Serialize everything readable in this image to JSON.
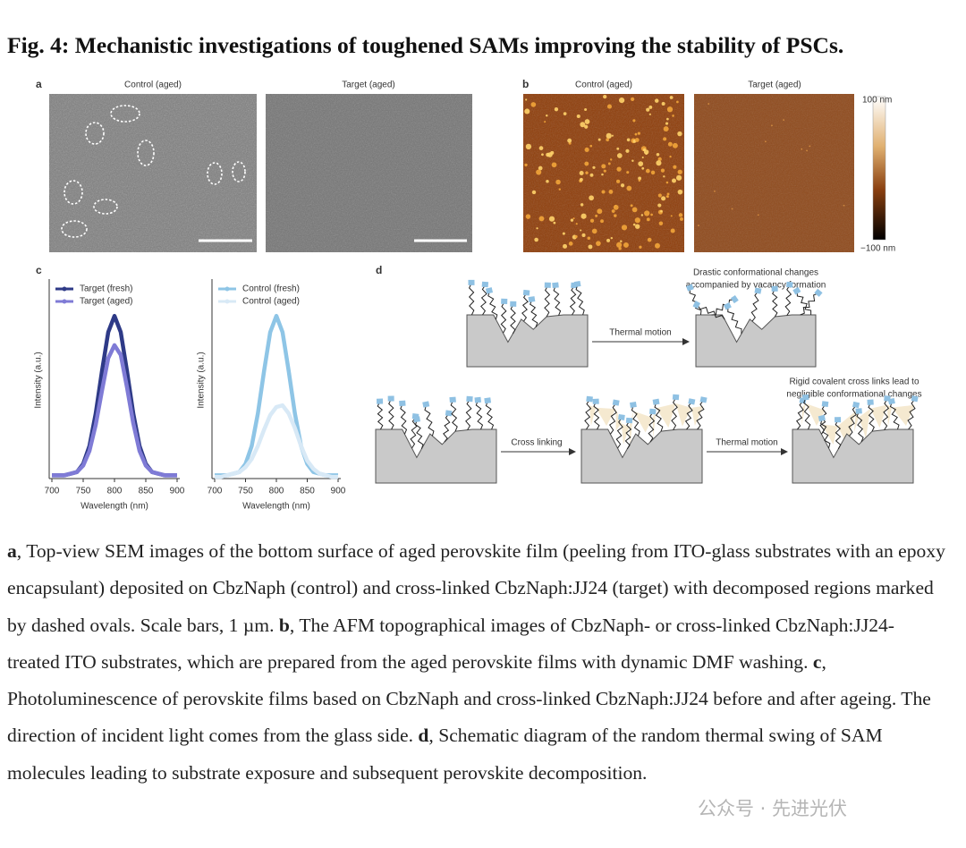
{
  "title": "Fig. 4: Mechanistic investigations of toughened SAMs improving the stability of PSCs.",
  "panel_a": {
    "label": "a",
    "images": [
      "Control (aged)",
      "Target (aged)"
    ]
  },
  "panel_b": {
    "label": "b",
    "images": [
      "Control (aged)",
      "Target (aged)"
    ],
    "colorbar": [
      "100 nm",
      "−100 nm"
    ]
  },
  "panel_c": {
    "label": "c",
    "charts": [
      {
        "type": "line",
        "xlabel": "Wavelength (nm)",
        "ylabel": "Intensity (a.u.)",
        "x": [
          700,
          710,
          720,
          730,
          740,
          750,
          760,
          770,
          780,
          790,
          800,
          810,
          820,
          830,
          840,
          850,
          860,
          870,
          880,
          890,
          900
        ],
        "xlim": [
          700,
          900
        ],
        "xticks": [
          700,
          750,
          800,
          850,
          900
        ],
        "ylim": [
          0,
          1.1
        ],
        "series": [
          {
            "name": "Target (fresh)",
            "color": "#2e3a87",
            "values": [
              0.02,
              0.02,
              0.02,
              0.03,
              0.04,
              0.09,
              0.2,
              0.4,
              0.66,
              0.9,
              1.0,
              0.9,
              0.66,
              0.4,
              0.2,
              0.09,
              0.04,
              0.03,
              0.02,
              0.02,
              0.02
            ]
          },
          {
            "name": "Target (aged)",
            "color": "#7f7bd6",
            "values": [
              0.02,
              0.02,
              0.02,
              0.03,
              0.04,
              0.08,
              0.17,
              0.33,
              0.54,
              0.74,
              0.82,
              0.76,
              0.56,
              0.34,
              0.17,
              0.08,
              0.04,
              0.03,
              0.02,
              0.02,
              0.02
            ]
          }
        ]
      },
      {
        "type": "line",
        "xlabel": "Wavelength (nm)",
        "ylabel": "Intensity (a.u.)",
        "x": [
          700,
          710,
          720,
          730,
          740,
          750,
          760,
          770,
          780,
          790,
          800,
          810,
          820,
          830,
          840,
          850,
          860,
          870,
          880,
          890,
          900
        ],
        "xlim": [
          700,
          900
        ],
        "xticks": [
          700,
          750,
          800,
          850,
          900
        ],
        "ylim": [
          0,
          1.1
        ],
        "series": [
          {
            "name": "Control (fresh)",
            "color": "#8ec5e6",
            "values": [
              0.02,
              0.02,
              0.02,
              0.03,
              0.04,
              0.09,
              0.2,
              0.4,
              0.66,
              0.9,
              1.0,
              0.9,
              0.66,
              0.4,
              0.2,
              0.09,
              0.04,
              0.03,
              0.02,
              0.02,
              0.02
            ]
          },
          {
            "name": "Control (aged)",
            "color": "#d8e9f6",
            "values": [
              0.01,
              0.01,
              0.02,
              0.03,
              0.04,
              0.07,
              0.12,
              0.2,
              0.3,
              0.39,
              0.44,
              0.45,
              0.4,
              0.31,
              0.2,
              0.11,
              0.06,
              0.03,
              0.02,
              0.01,
              0.01
            ]
          }
        ]
      }
    ]
  },
  "panel_d": {
    "label": "d",
    "notes": [
      "Drastic conformational changes",
      "accompanied by vacancy formation",
      "Rigid covalent cross links lead to",
      "negligible conformational changes"
    ],
    "arrows": [
      "Thermal motion",
      "Cross linking",
      "Thermal motion"
    ]
  },
  "caption": [
    {
      "label": "a",
      "text": ", Top-view SEM images of the bottom surface of aged perovskite film (peeling from ITO-glass substrates with an epoxy encapsulant) deposited on CbzNaph (control) and cross-linked CbzNaph:JJ24 (target) with decomposed regions marked by dashed ovals. Scale bars, 1 µm. "
    },
    {
      "label": "b",
      "text": ", The AFM topographical images of CbzNaph- or cross-linked CbzNaph:JJ24-treated ITO substrates, which are prepared from the aged perovskite films with dynamic DMF washing. "
    },
    {
      "label": "c",
      "text": ", Photoluminescence of perovskite films based on CbzNaph and cross-linked CbzNaph:JJ24 before and after ageing. The direction of incident light comes from the glass side. "
    },
    {
      "label": "d",
      "text": ", Schematic diagram of the random thermal swing of SAM molecules leading to substrate exposure and subsequent perovskite decomposition."
    }
  ],
  "watermark": "公众号 · 先进光伏"
}
